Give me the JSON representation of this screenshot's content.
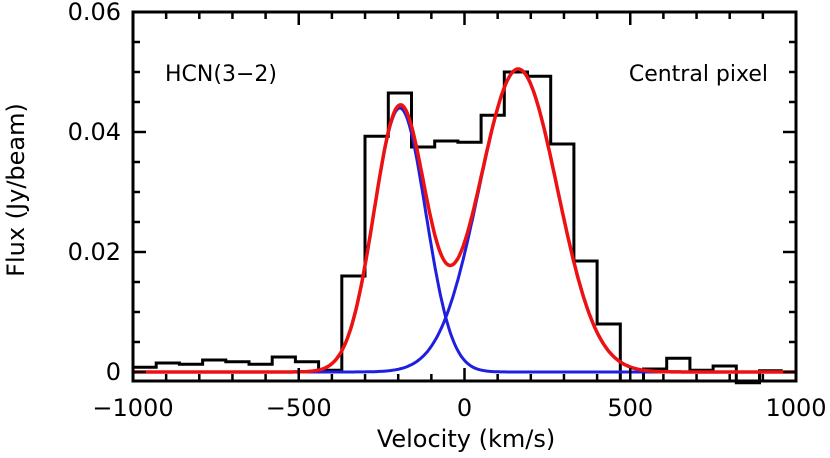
{
  "chart_data": {
    "type": "line",
    "title": "",
    "xlabel": "Velocity (km/s)",
    "ylabel": "Flux (Jy/beam)",
    "xlim": [
      -1000,
      1000
    ],
    "ylim": [
      -0.0015,
      0.06
    ],
    "x_ticks": [
      -1000,
      -500,
      0,
      500,
      1000
    ],
    "x_tick_labels": [
      "−1000",
      "−500",
      "0",
      "500",
      "1000"
    ],
    "y_ticks": [
      0,
      0.02,
      0.04,
      0.06
    ],
    "y_tick_labels": [
      "0",
      "0.02",
      "0.04",
      "0.06"
    ],
    "grid": false,
    "annotations": {
      "left": "HCN(3−2)",
      "right": "Central pixel"
    },
    "histogram": {
      "color": "#000000",
      "bin_edges": [
        -1000,
        -930,
        -860,
        -790,
        -720,
        -650,
        -580,
        -510,
        -440,
        -370,
        -300,
        -230,
        -160,
        -90,
        -20,
        50,
        120,
        190,
        260,
        330,
        400,
        470,
        540,
        610,
        680,
        750,
        820,
        890,
        960
      ],
      "values": [
        0.0008,
        0.0015,
        0.0013,
        0.002,
        0.0017,
        0.0013,
        0.0025,
        0.0017,
        0.0003,
        0.016,
        0.0393,
        0.0465,
        0.0375,
        0.0385,
        0.0383,
        0.0428,
        0.05,
        0.0493,
        0.038,
        0.0185,
        0.008,
        -0.0015,
        0.0005,
        0.0023,
        0.0003,
        0.001,
        -0.0018,
        0.0002
      ]
    },
    "series": [
      {
        "component": "gaussian",
        "color": "#1f1fe0",
        "amplitude": 0.044,
        "center": -195,
        "sigma": 78
      },
      {
        "component": "gaussian",
        "color": "#1f1fe0",
        "amplitude": 0.0505,
        "center": 162,
        "sigma": 118
      },
      {
        "component": "sum",
        "color": "#ee1111"
      }
    ],
    "x_range_curves": [
      -1000,
      1000
    ]
  }
}
